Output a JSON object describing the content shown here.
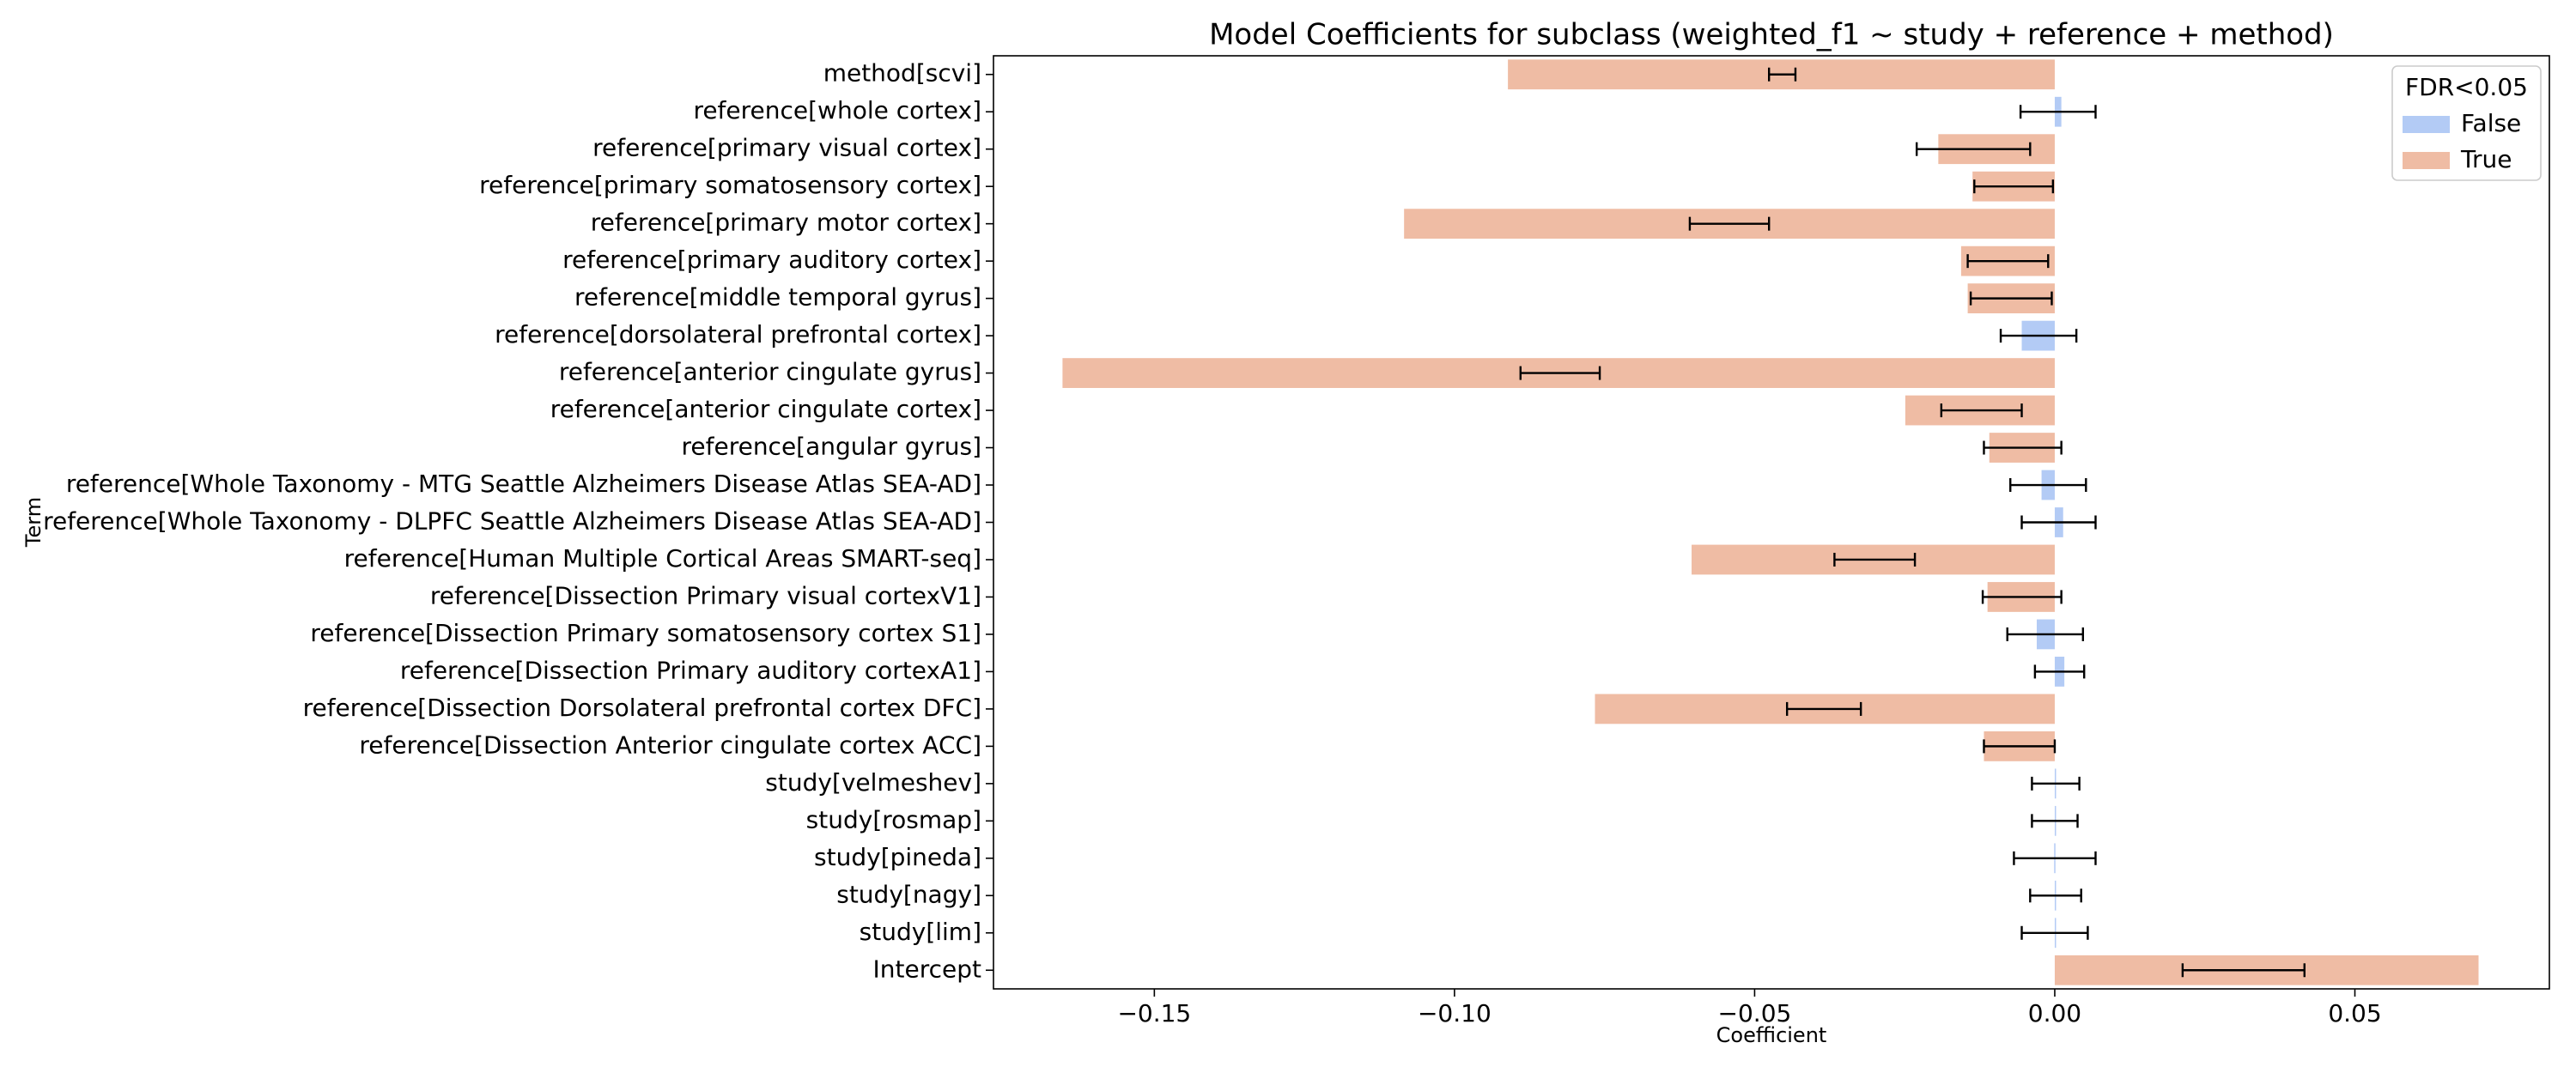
{
  "chart_data": {
    "type": "barh_error",
    "title": "Model Coefficients for subclass (weighted_f1 ~ study + reference + method)",
    "x_label": "Coefficient",
    "y_label": "Term",
    "categories": [
      "method[scvi]",
      "reference[whole cortex]",
      "reference[primary visual cortex]",
      "reference[primary somatosensory cortex]",
      "reference[primary motor cortex]",
      "reference[primary auditory cortex]",
      "reference[middle temporal gyrus]",
      "reference[dorsolateral prefrontal cortex]",
      "reference[anterior cingulate gyrus]",
      "reference[anterior cingulate cortex]",
      "reference[angular gyrus]",
      "reference[Whole Taxonomy - MTG Seattle Alzheimers Disease Atlas SEA-AD]",
      "reference[Whole Taxonomy - DLPFC Seattle Alzheimers Disease Atlas SEA-AD]",
      "reference[Human Multiple Cortical Areas SMART-seq]",
      "reference[Dissection Primary visual cortexV1]",
      "reference[Dissection Primary somatosensory cortex S1]",
      "reference[Dissection Primary auditory cortexA1]",
      "reference[Dissection Dorsolateral prefrontal cortex DFC]",
      "reference[Dissection Anterior cingulate cortex ACC]",
      "study[velmeshev]",
      "study[rosmap]",
      "study[pineda]",
      "study[nagy]",
      "study[lim]",
      "Intercept"
    ],
    "legend_title": "FDR<0.05",
    "legend_location": "upper right",
    "series": [
      {
        "name": "False",
        "color": "#b3cbf5",
        "values": [
          null,
          0.0011,
          null,
          null,
          null,
          null,
          null,
          -0.0055,
          null,
          null,
          null,
          -0.0022,
          0.0014,
          null,
          null,
          -0.003,
          0.0016,
          null,
          null,
          0.0002,
          0.0001,
          -0.0001,
          0.0001,
          0.0,
          null
        ]
      },
      {
        "name": "True",
        "color": "#efbca4",
        "values": [
          -0.0911,
          null,
          -0.0194,
          -0.0137,
          -0.1084,
          -0.0156,
          -0.0145,
          null,
          -0.1653,
          -0.0249,
          -0.0109,
          null,
          null,
          -0.0605,
          -0.0112,
          null,
          null,
          -0.0766,
          -0.0118,
          null,
          null,
          null,
          null,
          null,
          0.0706
        ]
      }
    ],
    "error_low": [
      -0.0476,
      -0.0057,
      -0.023,
      -0.0134,
      -0.0608,
      -0.0145,
      -0.014,
      -0.009,
      -0.089,
      -0.0189,
      -0.0118,
      -0.0074,
      -0.0055,
      -0.0367,
      -0.012,
      -0.0079,
      -0.0033,
      -0.0446,
      -0.0118,
      -0.0038,
      -0.0038,
      -0.0068,
      -0.0041,
      -0.0055,
      0.0213
    ],
    "error_high": [
      -0.0432,
      0.0068,
      -0.0041,
      -0.0003,
      -0.0476,
      -0.0011,
      -0.0005,
      0.0036,
      -0.0758,
      -0.0055,
      0.0011,
      0.0052,
      0.0068,
      -0.0233,
      0.0011,
      0.0047,
      0.0049,
      -0.0323,
      0.0,
      0.0041,
      0.0038,
      0.0068,
      0.0044,
      0.0055,
      0.0416
    ],
    "xlim": [
      -0.1768,
      0.0824
    ],
    "xticks": [
      {
        "value": -0.15,
        "label": "−0.15"
      },
      {
        "value": -0.1,
        "label": "−0.10"
      },
      {
        "value": -0.05,
        "label": "−0.05"
      },
      {
        "value": 0.0,
        "label": "0.00"
      },
      {
        "value": 0.05,
        "label": "0.05"
      }
    ]
  }
}
